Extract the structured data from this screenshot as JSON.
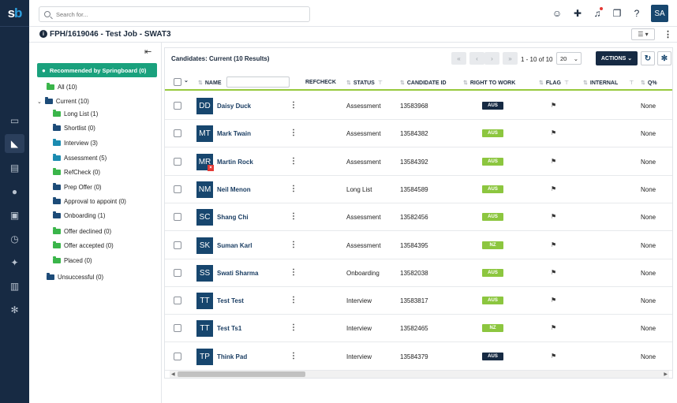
{
  "app": {
    "logo_s": "s",
    "logo_b": "b"
  },
  "rail_icons": [
    "desktop-icon",
    "megaphone-icon",
    "newspaper-icon",
    "people-icon",
    "window-icon",
    "calendar-icon",
    "pin-icon",
    "chart-icon",
    "settings-icon"
  ],
  "search": {
    "placeholder": "Search for..."
  },
  "user": {
    "initials": "SA"
  },
  "page": {
    "title": "FPH/1619046 - Test Job - SWAT3",
    "info": "i"
  },
  "tree": {
    "recommended": "Recommended by Springboard (0)",
    "items": [
      {
        "label": "All (10)",
        "color": "green"
      },
      {
        "label": "Current (10)",
        "color": "blue"
      },
      {
        "label": "Long List (1)",
        "color": "green"
      },
      {
        "label": "Shortlist (0)",
        "color": "blue"
      },
      {
        "label": "Interview (3)",
        "color": "teal"
      },
      {
        "label": "Assessment (5)",
        "color": "teal"
      },
      {
        "label": "RefCheck (0)",
        "color": "green"
      },
      {
        "label": "Prep Offer (0)",
        "color": "blue"
      },
      {
        "label": "Approval to appoint (0)",
        "color": "blue"
      },
      {
        "label": "Onboarding (1)",
        "color": "blue"
      },
      {
        "label": "Offer declined (0)",
        "color": "green"
      },
      {
        "label": "Offer accepted (0)",
        "color": "green"
      },
      {
        "label": "Placed (0)",
        "color": "green"
      },
      {
        "label": "Unsuccessful (0)",
        "color": "blue"
      }
    ]
  },
  "candidates": {
    "title": "Candidates: Current (10 Results)",
    "pagination": {
      "range": "1 - 10 of 10",
      "page_size": "20"
    },
    "actions_label": "ACTIONS",
    "columns": {
      "name": "NAME",
      "refcheck": "REFCHECK",
      "status": "STATUS",
      "candidate_id": "CANDIDATE ID",
      "right_to_work": "RIGHT TO WORK",
      "flag": "FLAG",
      "internal": "INTERNAL",
      "q": "Q%"
    },
    "rows": [
      {
        "initials": "DD",
        "name": "Daisy Duck",
        "status": "Assessment",
        "id": "13583968",
        "rtw": "AUS",
        "rtw_color": "#162a43",
        "q": "None",
        "badge": false
      },
      {
        "initials": "MT",
        "name": "Mark Twain",
        "status": "Assessment",
        "id": "13584382",
        "rtw": "AUS",
        "rtw_color": "#8cc63f",
        "q": "None",
        "badge": false
      },
      {
        "initials": "MR",
        "name": "Martin Rock",
        "status": "Assessment",
        "id": "13584392",
        "rtw": "AUS",
        "rtw_color": "#8cc63f",
        "q": "None",
        "badge": true
      },
      {
        "initials": "NM",
        "name": "Neil Menon",
        "status": "Long List",
        "id": "13584589",
        "rtw": "AUS",
        "rtw_color": "#8cc63f",
        "q": "None",
        "badge": false
      },
      {
        "initials": "SC",
        "name": "Shang Chi",
        "status": "Assessment",
        "id": "13582456",
        "rtw": "AUS",
        "rtw_color": "#8cc63f",
        "q": "None",
        "badge": false
      },
      {
        "initials": "SK",
        "name": "Suman Karl",
        "status": "Assessment",
        "id": "13584395",
        "rtw": "NZ",
        "rtw_color": "#8cc63f",
        "q": "None",
        "badge": false
      },
      {
        "initials": "SS",
        "name": "Swati Sharma",
        "status": "Onboarding",
        "id": "13582038",
        "rtw": "AUS",
        "rtw_color": "#8cc63f",
        "q": "None",
        "badge": false
      },
      {
        "initials": "TT",
        "name": "Test Test",
        "status": "Interview",
        "id": "13583817",
        "rtw": "AUS",
        "rtw_color": "#8cc63f",
        "q": "None",
        "badge": false
      },
      {
        "initials": "TT",
        "name": "Test Ts1",
        "status": "Interview",
        "id": "13582465",
        "rtw": "NZ",
        "rtw_color": "#8cc63f",
        "q": "None",
        "badge": false
      },
      {
        "initials": "TP",
        "name": "Think Pad",
        "status": "Interview",
        "id": "13584379",
        "rtw": "AUS",
        "rtw_color": "#162a43",
        "q": "None",
        "badge": false
      }
    ]
  }
}
